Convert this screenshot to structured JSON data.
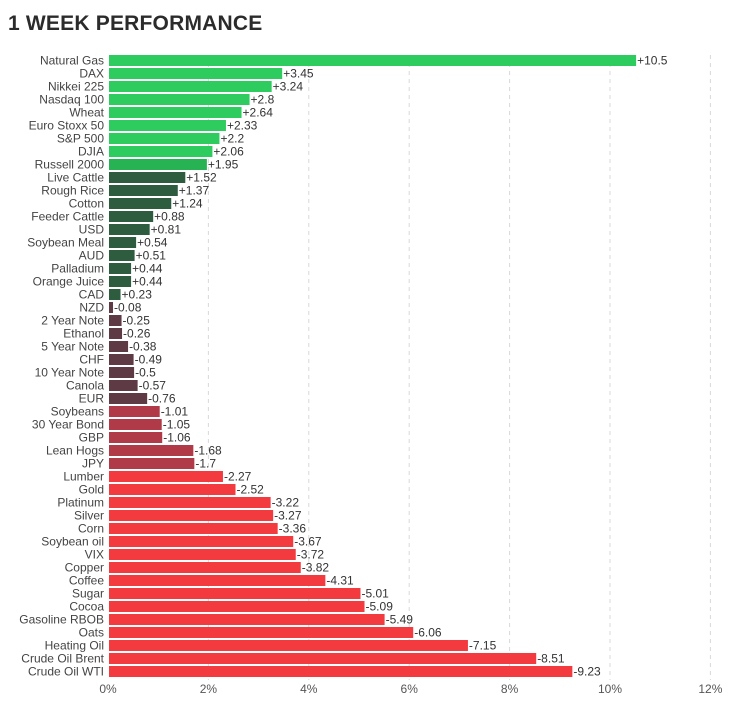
{
  "header": {
    "title": "1 WEEK PERFORMANCE"
  },
  "colors": {
    "positive_bright": "#2ecc5e",
    "positive_mid": "#27b353",
    "positive_dark": "#2e5c3e",
    "negative_dark": "#5e3a44",
    "negative_mid": "#b03a47",
    "negative_bright": "#f23a3f",
    "grid": "#d9d9d9"
  },
  "chart_data": {
    "type": "bar",
    "orientation": "horizontal",
    "title": "1 WEEK PERFORMANCE",
    "xlabel": "",
    "ylabel": "",
    "xlim": [
      0,
      12
    ],
    "x_ticks": [
      "0%",
      "2%",
      "4%",
      "6%",
      "8%",
      "10%",
      "12%"
    ],
    "grid": "vertical dashed",
    "categories": [
      "Natural Gas",
      "DAX",
      "Nikkei 225",
      "Nasdaq 100",
      "Wheat",
      "Euro Stoxx 50",
      "S&P 500",
      "DJIA",
      "Russell 2000",
      "Live Cattle",
      "Rough Rice",
      "Cotton",
      "Feeder Cattle",
      "USD",
      "Soybean Meal",
      "AUD",
      "Palladium",
      "Orange Juice",
      "CAD",
      "NZD",
      "2 Year Note",
      "Ethanol",
      "5 Year Note",
      "CHF",
      "10 Year Note",
      "Canola",
      "EUR",
      "Soybeans",
      "30 Year Bond",
      "GBP",
      "Lean Hogs",
      "JPY",
      "Lumber",
      "Gold",
      "Platinum",
      "Silver",
      "Corn",
      "Soybean oil",
      "VIX",
      "Copper",
      "Coffee",
      "Sugar",
      "Cocoa",
      "Gasoline RBOB",
      "Oats",
      "Heating Oil",
      "Crude Oil Brent",
      "Crude Oil WTI"
    ],
    "values": [
      10.5,
      3.45,
      3.24,
      2.8,
      2.64,
      2.33,
      2.2,
      2.06,
      1.95,
      1.52,
      1.37,
      1.24,
      0.88,
      0.81,
      0.54,
      0.51,
      0.44,
      0.44,
      0.23,
      -0.08,
      -0.25,
      -0.26,
      -0.38,
      -0.49,
      -0.5,
      -0.57,
      -0.76,
      -1.01,
      -1.05,
      -1.06,
      -1.68,
      -1.7,
      -2.27,
      -2.52,
      -3.22,
      -3.27,
      -3.36,
      -3.67,
      -3.72,
      -3.82,
      -4.31,
      -5.01,
      -5.09,
      -5.49,
      -6.06,
      -7.15,
      -8.51,
      -9.23
    ],
    "value_labels": [
      "+10.5",
      "+3.45",
      "+3.24",
      "+2.8",
      "+2.64",
      "+2.33",
      "+2.2",
      "+2.06",
      "+1.95",
      "+1.52",
      "+1.37",
      "+1.24",
      "+0.88",
      "+0.81",
      "+0.54",
      "+0.51",
      "+0.44",
      "+0.44",
      "+0.23",
      "-0.08",
      "-0.25",
      "-0.26",
      "-0.38",
      "-0.49",
      "-0.5",
      "-0.57",
      "-0.76",
      "-1.01",
      "-1.05",
      "-1.06",
      "-1.68",
      "-1.7",
      "-2.27",
      "-2.52",
      "-3.22",
      "-3.27",
      "-3.36",
      "-3.67",
      "-3.72",
      "-3.82",
      "-4.31",
      "-5.01",
      "-5.09",
      "-5.49",
      "-6.06",
      "-7.15",
      "-8.51",
      "-9.23"
    ]
  }
}
